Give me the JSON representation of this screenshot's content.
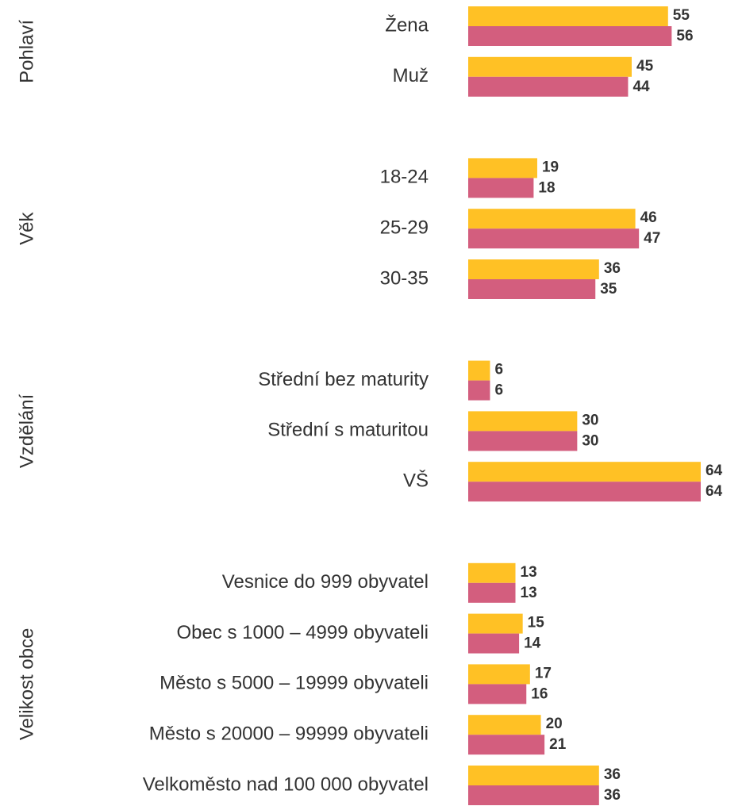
{
  "chart_data": {
    "type": "bar",
    "orientation": "horizontal",
    "groups": [
      {
        "name": "Pohlaví",
        "categories": [
          "Žena",
          "Muž"
        ]
      },
      {
        "name": "Věk",
        "categories": [
          "18-24",
          "25-29",
          "30-35"
        ]
      },
      {
        "name": "Vzdělání",
        "categories": [
          "Střední bez maturity",
          "Střední s maturitou",
          "VŠ"
        ]
      },
      {
        "name": "Velikost obce",
        "categories": [
          "Vesnice do 999 obyvatel",
          "Obec s 1000 – 4999 obyvateli",
          "Město s 5000 – 19999 obyvateli",
          "Město s 20000 – 99999 obyvateli",
          "Velkoměsto nad 100 000 obyvatel"
        ]
      }
    ],
    "series": [
      {
        "color": "#FFC125",
        "values": [
          55,
          45,
          19,
          46,
          36,
          6,
          30,
          64,
          13,
          15,
          17,
          20,
          36
        ]
      },
      {
        "color": "#D35E7E",
        "values": [
          56,
          44,
          18,
          47,
          35,
          6,
          30,
          64,
          13,
          14,
          16,
          21,
          36
        ]
      }
    ]
  }
}
